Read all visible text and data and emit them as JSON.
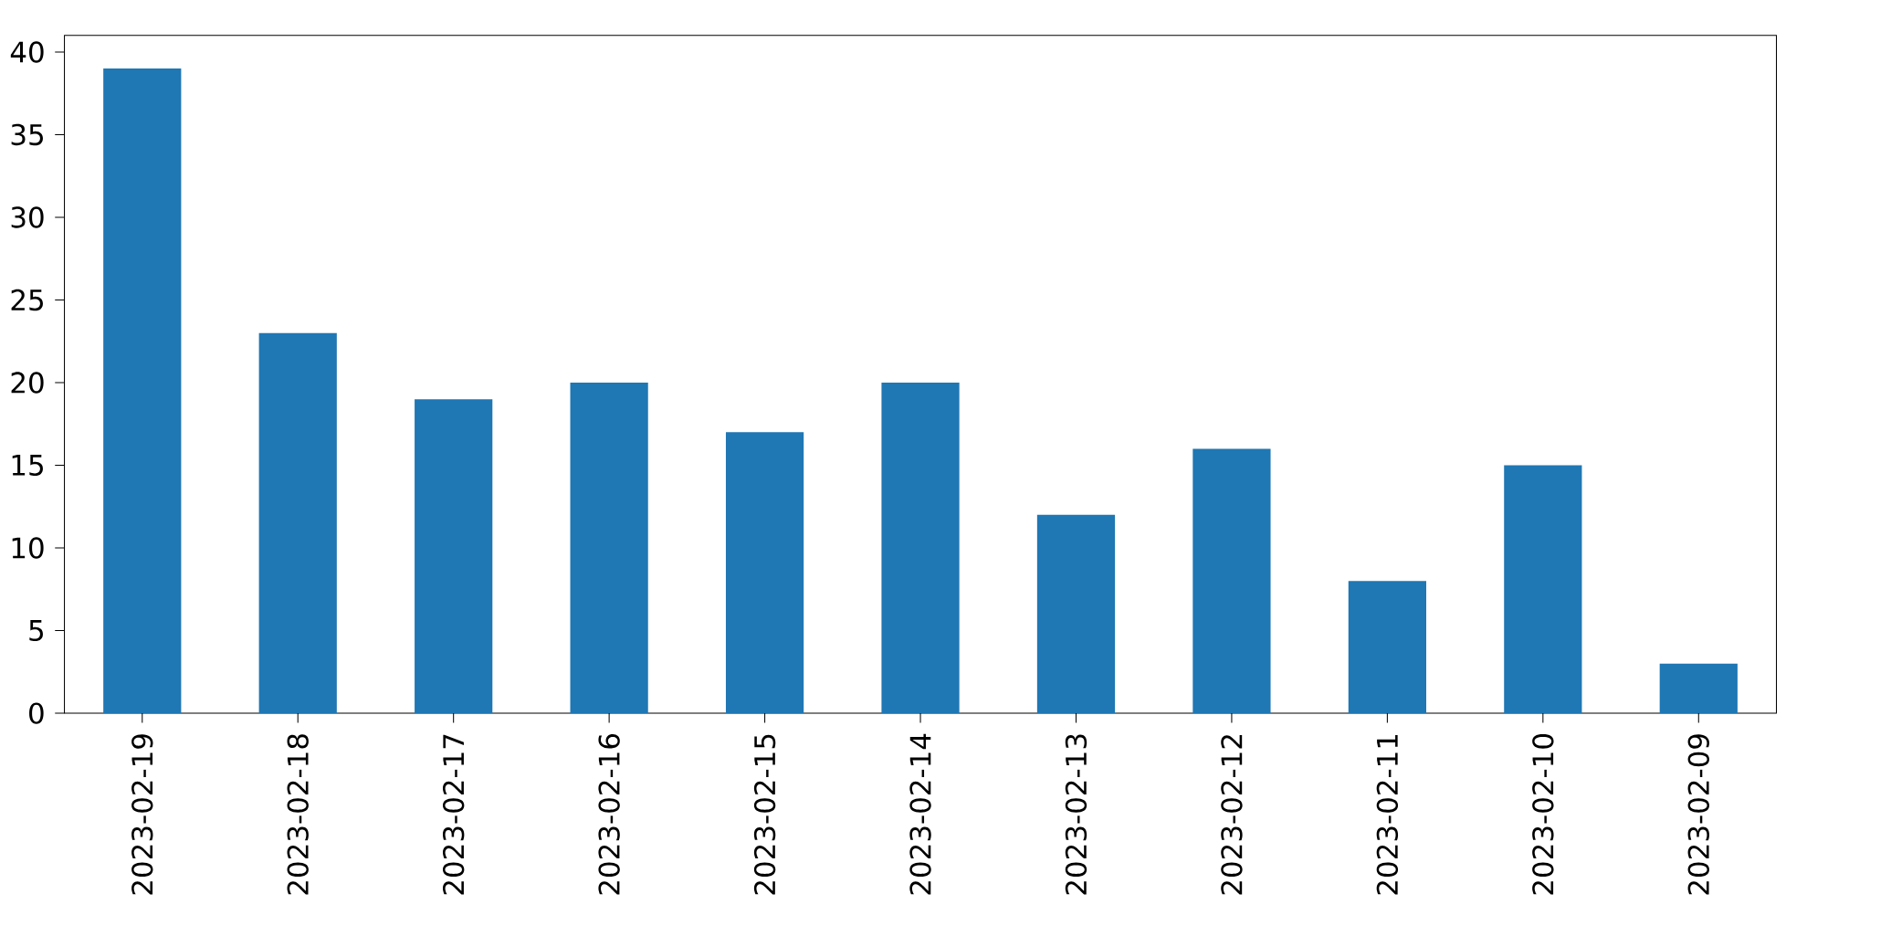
{
  "chart_data": {
    "type": "bar",
    "categories": [
      "2023-02-19",
      "2023-02-18",
      "2023-02-17",
      "2023-02-16",
      "2023-02-15",
      "2023-02-14",
      "2023-02-13",
      "2023-02-12",
      "2023-02-11",
      "2023-02-10",
      "2023-02-09"
    ],
    "values": [
      39,
      23,
      19,
      20,
      17,
      20,
      12,
      16,
      8,
      15,
      3
    ],
    "color": "#1f77b4",
    "ylim": [
      0,
      41
    ],
    "yticks": [
      0,
      5,
      10,
      15,
      20,
      25,
      30,
      35,
      40
    ]
  }
}
